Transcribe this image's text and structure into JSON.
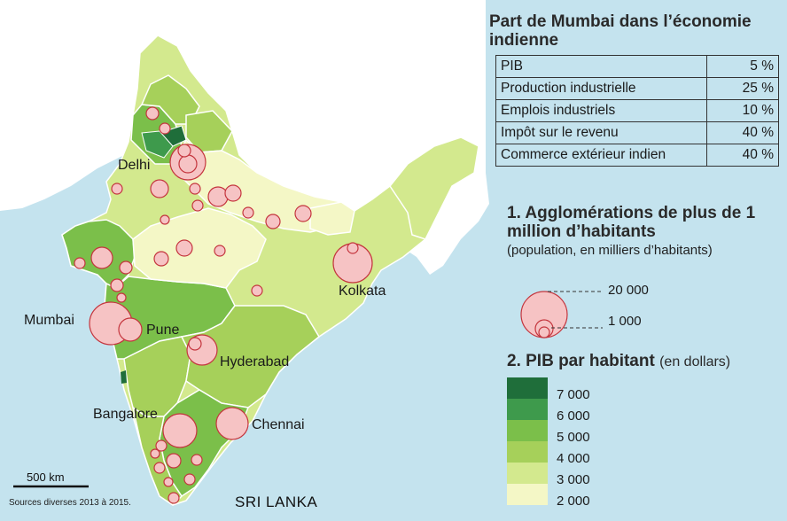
{
  "cities": [
    {
      "name": "Delhi"
    },
    {
      "name": "Mumbai"
    },
    {
      "name": "Pune"
    },
    {
      "name": "Kolkata"
    },
    {
      "name": "Hyderabad"
    },
    {
      "name": "Bangalore"
    },
    {
      "name": "Chennai"
    }
  ],
  "country_label": "SRI LANKA",
  "scale_bar": "500 km",
  "sources": "Sources diverses 2013 à 2015.",
  "mumbai_share": {
    "title": "Part de Mumbai dans l’économie indienne",
    "rows": [
      {
        "label": "PIB",
        "value": "5 %"
      },
      {
        "label": "Production industrielle",
        "value": "25 %"
      },
      {
        "label": "Emplois industriels",
        "value": "10 %"
      },
      {
        "label": "Impôt sur le revenu",
        "value": "40 %"
      },
      {
        "label": "Commerce extérieur indien",
        "value": "40 %"
      }
    ]
  },
  "legend_population": {
    "title": "1. Agglomérations de plus de 1 million d’habitants",
    "subtitle": "(population, en milliers d’habitants)",
    "large": "20 000",
    "small": "1 000"
  },
  "legend_gdp": {
    "title": "2. PIB par habitant",
    "unit": "(en dollars)",
    "classes": [
      {
        "label": "7 000",
        "color": "#1f6e3a"
      },
      {
        "label": "6 000",
        "color": "#3e9a4c"
      },
      {
        "label": "5 000",
        "color": "#7bbf4a"
      },
      {
        "label": "4 000",
        "color": "#a6d05a"
      },
      {
        "label": "3 000",
        "color": "#d3e98e"
      },
      {
        "label": "2 000",
        "color": "#f4f7c6"
      }
    ]
  },
  "colors": {
    "sea": "#c4e3ee",
    "neighbors": "#ffffff",
    "circle_fill": "#f6c3c4",
    "circle_stroke": "#c4353d"
  }
}
